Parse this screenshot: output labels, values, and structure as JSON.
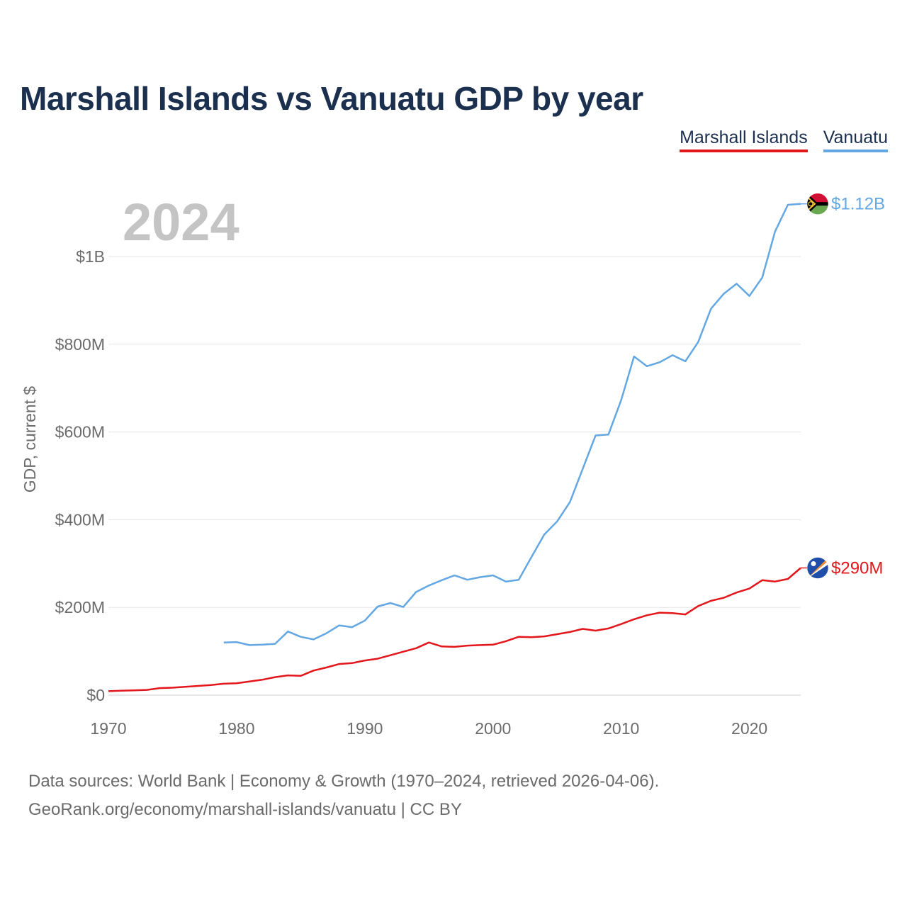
{
  "title": "Marshall Islands vs Vanuatu GDP by year",
  "legend": [
    {
      "label": "Marshall Islands",
      "color": "#e3161b"
    },
    {
      "label": "Vanuatu",
      "color": "#63a7e3"
    }
  ],
  "source": {
    "line1": "Data sources: World Bank | Economy & Growth (1970–2024, retrieved 2026-04-06).",
    "line2": "GeoRank.org/economy/marshall-islands/vanuatu | CC BY"
  },
  "chart_data": {
    "type": "line",
    "title": "Marshall Islands vs Vanuatu GDP by year",
    "year_label": "2024",
    "ylabel": "GDP, current $",
    "xlabel": "",
    "xlim": [
      1970,
      2024
    ],
    "ylim": [
      0,
      1200000000
    ],
    "x_ticks": [
      1970,
      1980,
      1990,
      2000,
      2010,
      2020
    ],
    "x_tick_labels": [
      "1970",
      "1980",
      "1990",
      "2000",
      "2010",
      "2020"
    ],
    "y_ticks": [
      0,
      200000000,
      400000000,
      600000000,
      800000000,
      1000000000
    ],
    "y_tick_labels": [
      "$0",
      "$200M",
      "$400M",
      "$600M",
      "$800M",
      "$1B"
    ],
    "grid": true,
    "series": [
      {
        "name": "Marshall Islands",
        "color": "#e3161b",
        "end_label": "$290M",
        "flag": "marshall-islands-flag",
        "x": [
          1970,
          1971,
          1972,
          1973,
          1974,
          1975,
          1976,
          1977,
          1978,
          1979,
          1980,
          1981,
          1982,
          1983,
          1984,
          1985,
          1986,
          1987,
          1988,
          1989,
          1990,
          1991,
          1992,
          1993,
          1994,
          1995,
          1996,
          1997,
          1998,
          1999,
          2000,
          2001,
          2002,
          2003,
          2004,
          2005,
          2006,
          2007,
          2008,
          2009,
          2010,
          2011,
          2012,
          2013,
          2014,
          2015,
          2016,
          2017,
          2018,
          2019,
          2020,
          2021,
          2022,
          2023,
          2024
        ],
        "values": [
          9000000,
          10000000,
          11000000,
          12000000,
          16000000,
          17000000,
          19000000,
          21000000,
          23000000,
          26000000,
          27000000,
          31000000,
          35000000,
          41000000,
          45000000,
          44000000,
          56000000,
          63000000,
          71000000,
          73000000,
          79000000,
          83000000,
          91000000,
          99000000,
          107000000,
          120000000,
          111000000,
          110000000,
          113000000,
          114000000,
          115000000,
          123000000,
          133000000,
          132000000,
          134000000,
          139000000,
          144000000,
          151000000,
          147000000,
          152000000,
          162000000,
          173000000,
          182000000,
          188000000,
          187000000,
          184000000,
          203000000,
          215000000,
          222000000,
          234000000,
          243000000,
          262000000,
          259000000,
          265000000,
          290000000
        ]
      },
      {
        "name": "Vanuatu",
        "color": "#63a7e3",
        "end_label": "$1.12B",
        "flag": "vanuatu-flag",
        "x": [
          1979,
          1980,
          1981,
          1982,
          1983,
          1984,
          1985,
          1986,
          1987,
          1988,
          1989,
          1990,
          1991,
          1992,
          1993,
          1994,
          1995,
          1996,
          1997,
          1998,
          1999,
          2000,
          2001,
          2002,
          2003,
          2004,
          2005,
          2006,
          2007,
          2008,
          2009,
          2010,
          2011,
          2012,
          2013,
          2014,
          2015,
          2016,
          2017,
          2018,
          2019,
          2020,
          2021,
          2022,
          2023,
          2024
        ],
        "values": [
          120000000,
          121000000,
          114000000,
          115000000,
          117000000,
          145000000,
          133000000,
          127000000,
          141000000,
          159000000,
          155000000,
          170000000,
          202000000,
          210000000,
          201000000,
          235000000,
          250000000,
          262000000,
          273000000,
          263000000,
          269000000,
          273000000,
          259000000,
          263000000,
          315000000,
          366000000,
          396000000,
          440000000,
          516000000,
          592000000,
          594000000,
          673000000,
          772000000,
          750000000,
          759000000,
          775000000,
          761000000,
          805000000,
          881000000,
          915000000,
          938000000,
          910000000,
          952000000,
          1057000000,
          1118000000,
          1120000000
        ]
      }
    ]
  }
}
